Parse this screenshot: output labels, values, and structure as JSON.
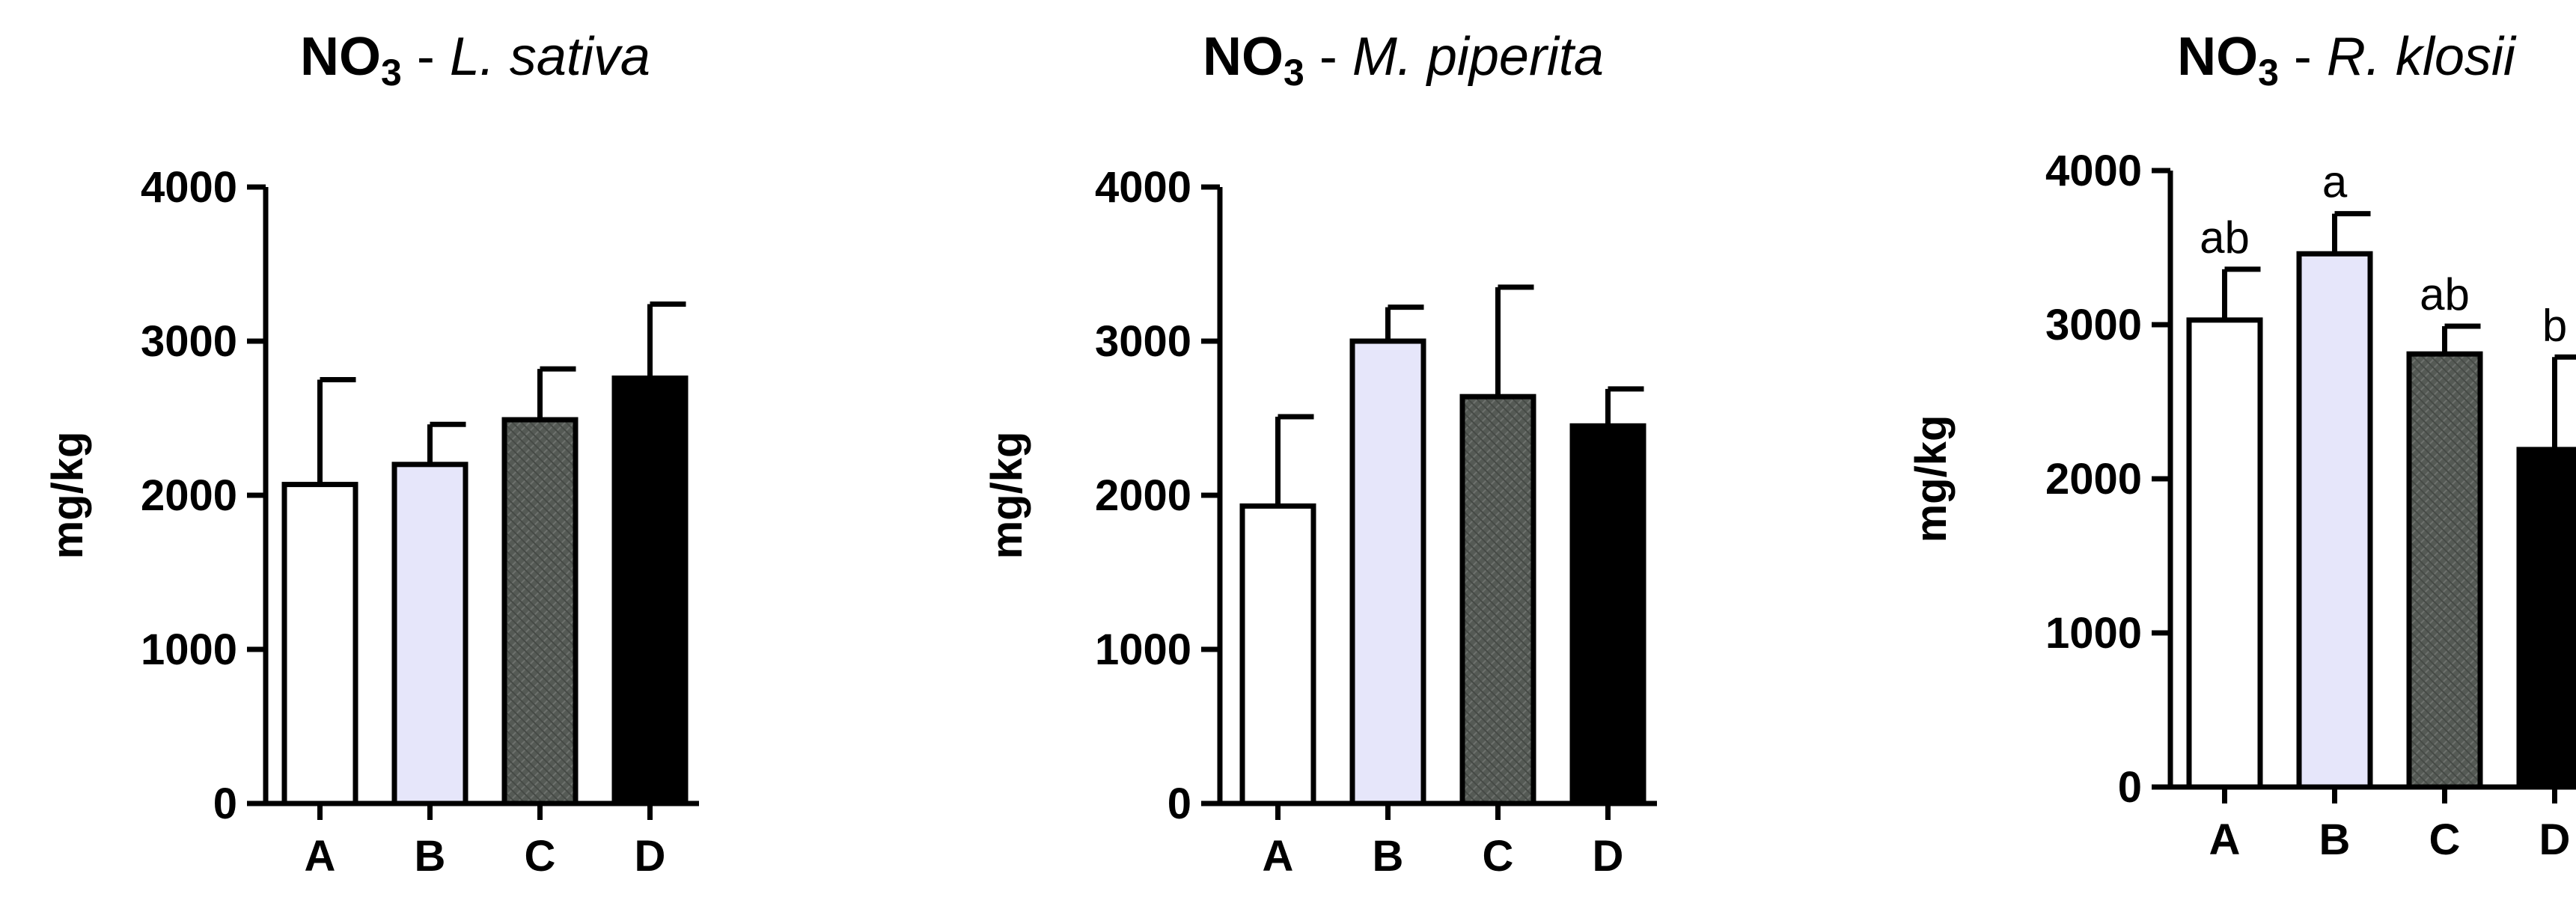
{
  "chart_data": [
    {
      "type": "bar",
      "title": {
        "prefix": "NO",
        "subscript": "3",
        "separator": " - ",
        "species": "L. sativa"
      },
      "ylabel": "mg/kg",
      "ylim": [
        0,
        4000
      ],
      "yticks": [
        0,
        1000,
        2000,
        3000,
        4000
      ],
      "categories": [
        "A",
        "B",
        "C",
        "D"
      ],
      "values": [
        2070,
        2200,
        2490,
        2760
      ],
      "errors": [
        680,
        260,
        330,
        480
      ],
      "significance_labels": [
        "",
        "",
        "",
        ""
      ]
    },
    {
      "type": "bar",
      "title": {
        "prefix": "NO",
        "subscript": "3",
        "separator": " - ",
        "species": "M. piperita"
      },
      "ylabel": "mg/kg",
      "ylim": [
        0,
        4000
      ],
      "yticks": [
        0,
        1000,
        2000,
        3000,
        4000
      ],
      "categories": [
        "A",
        "B",
        "C",
        "D"
      ],
      "values": [
        1930,
        3000,
        2640,
        2450
      ],
      "errors": [
        580,
        220,
        710,
        240
      ],
      "significance_labels": [
        "",
        "",
        "",
        ""
      ]
    },
    {
      "type": "bar",
      "title": {
        "prefix": "NO",
        "subscript": "3",
        "separator": " - ",
        "species": "R. klosii"
      },
      "ylabel": "mg/kg",
      "ylim": [
        0,
        4000
      ],
      "yticks": [
        0,
        1000,
        2000,
        3000,
        4000
      ],
      "categories": [
        "A",
        "B",
        "C",
        "D"
      ],
      "values": [
        3030,
        3460,
        2810,
        2190
      ],
      "errors": [
        330,
        260,
        180,
        600
      ],
      "significance_labels": [
        "ab",
        "a",
        "ab",
        "b"
      ]
    }
  ],
  "colors": {
    "A": "#ffffff",
    "B": "#e6e6fa",
    "C": "#555a55",
    "D": "#000000",
    "stroke": "#000000"
  }
}
